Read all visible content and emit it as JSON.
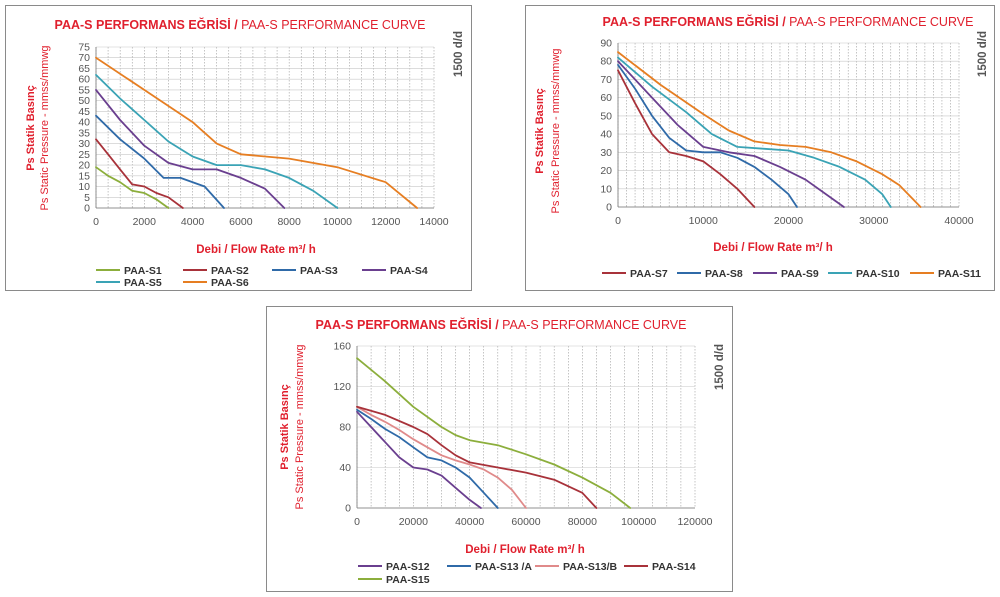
{
  "colors": {
    "title": "#e0202e",
    "grid": "#8a8a8a",
    "text": "#555555"
  },
  "chart_data": [
    {
      "type": "line",
      "title_bold": "PAA-S PERFORMANS EĞRİSİ /",
      "title_light": "PAA-S PERFORMANCE CURVE",
      "ylabel_tr": "Ps Statik Basınç",
      "ylabel_en": "Ps Static Pressure - mmss/mmwg",
      "rpm_label": "1500 d/d",
      "xlabel": "Debi / Flow Rate m³/ h",
      "xlim": [
        0,
        14000
      ],
      "xticks": [
        0,
        2000,
        4000,
        6000,
        8000,
        10000,
        12000,
        14000
      ],
      "xtick_labels": [
        "0",
        "2000",
        "4000",
        "6000",
        "8000",
        "10000",
        "12000",
        "14000"
      ],
      "xgrid_step": 500,
      "ylim": [
        0,
        75
      ],
      "yticks": [
        0,
        5,
        10,
        15,
        20,
        25,
        30,
        35,
        40,
        45,
        50,
        55,
        60,
        65,
        70,
        75
      ],
      "ytick_labels": [
        "0",
        "5",
        "10",
        "15",
        "20",
        "25",
        "30",
        "35",
        "40",
        "45",
        "50",
        "55",
        "60",
        "65",
        "70",
        "75"
      ],
      "legend_rows": [
        [
          "PAA-S1",
          "PAA-S2",
          "PAA-S3",
          "PAA-S4"
        ],
        [
          "PAA-S5",
          "PAA-S6"
        ]
      ],
      "series": [
        {
          "name": "PAA-S1",
          "color": "#8cae3c",
          "x": [
            0,
            500,
            1000,
            1500,
            2000,
            2500,
            3000
          ],
          "y": [
            19,
            15,
            12,
            8,
            7,
            4,
            0
          ]
        },
        {
          "name": "PAA-S2",
          "color": "#a8323a",
          "x": [
            0,
            500,
            1000,
            1500,
            2000,
            2500,
            3000,
            3600
          ],
          "y": [
            32,
            25,
            18,
            11,
            10,
            7,
            5,
            0
          ]
        },
        {
          "name": "PAA-S3",
          "color": "#2f6aa8",
          "x": [
            0,
            1000,
            2000,
            2800,
            3500,
            4500,
            5300
          ],
          "y": [
            43,
            32,
            23,
            14,
            14,
            10,
            0
          ]
        },
        {
          "name": "PAA-S4",
          "color": "#6a3f8f",
          "x": [
            0,
            1000,
            2000,
            3000,
            4000,
            5000,
            6000,
            7000,
            7800
          ],
          "y": [
            55,
            41,
            29,
            21,
            18,
            18,
            14,
            9,
            0
          ]
        },
        {
          "name": "PAA-S5",
          "color": "#3aa3b5",
          "x": [
            0,
            1000,
            2000,
            3000,
            4000,
            5000,
            6000,
            7000,
            8000,
            9000,
            10000
          ],
          "y": [
            62,
            51,
            41,
            31,
            24,
            20,
            20,
            18,
            14,
            8,
            0
          ]
        },
        {
          "name": "PAA-S6",
          "color": "#e67e22",
          "x": [
            0,
            2000,
            4000,
            5000,
            6000,
            8000,
            10000,
            12000,
            13300
          ],
          "y": [
            70,
            55,
            40,
            30,
            25,
            23,
            19,
            12,
            0
          ]
        }
      ]
    },
    {
      "type": "line",
      "title_bold": "PAA-S PERFORMANS EĞRİSİ /",
      "title_light": "PAA-S PERFORMANCE CURVE",
      "ylabel_tr": "Ps Statik Basınç",
      "ylabel_en": "Ps Static Pressure - mmss/mmwg",
      "rpm_label": "1500 d/d",
      "xlabel": "Debi / Flow Rate m³/ h",
      "xlim": [
        0,
        40000
      ],
      "xticks": [
        0,
        10000,
        20000,
        30000,
        40000
      ],
      "xtick_labels": [
        "0",
        "10000",
        "20000",
        "30000",
        "40000"
      ],
      "xgrid_step": 1000,
      "ylim": [
        0,
        90
      ],
      "yticks": [
        0,
        10,
        20,
        30,
        40,
        50,
        60,
        70,
        80,
        90
      ],
      "ytick_labels": [
        "0",
        "10",
        "20",
        "30",
        "40",
        "50",
        "60",
        "70",
        "80",
        "90"
      ],
      "legend_rows": [
        [
          "PAA-S7",
          "PAA-S8",
          "PAA-S9",
          "PAA-S10",
          "PAA-S11"
        ]
      ],
      "series": [
        {
          "name": "PAA-S7",
          "color": "#a8323a",
          "x": [
            0,
            2000,
            4000,
            6000,
            8000,
            10000,
            12000,
            14000,
            16000
          ],
          "y": [
            75,
            57,
            40,
            30,
            28,
            25,
            18,
            10,
            0
          ]
        },
        {
          "name": "PAA-S8",
          "color": "#2f6aa8",
          "x": [
            0,
            2000,
            4000,
            6000,
            8000,
            10000,
            12000,
            14000,
            16000,
            18000,
            20000,
            21000
          ],
          "y": [
            78,
            65,
            50,
            38,
            31,
            30,
            30,
            27,
            22,
            15,
            7,
            0
          ]
        },
        {
          "name": "PAA-S9",
          "color": "#6a3f8f",
          "x": [
            0,
            4000,
            7000,
            10000,
            13000,
            16000,
            19000,
            22000,
            25000,
            26500
          ],
          "y": [
            80,
            60,
            45,
            33,
            30,
            28,
            22,
            15,
            5,
            0
          ]
        },
        {
          "name": "PAA-S10",
          "color": "#3aa3b5",
          "x": [
            0,
            4000,
            8000,
            11000,
            14000,
            17000,
            20000,
            23000,
            26000,
            29000,
            31000,
            32000
          ],
          "y": [
            82,
            66,
            52,
            40,
            33,
            32,
            31,
            27,
            22,
            15,
            7,
            0
          ]
        },
        {
          "name": "PAA-S11",
          "color": "#e67e22",
          "x": [
            0,
            5000,
            10000,
            13000,
            16000,
            19000,
            22000,
            25000,
            28000,
            31000,
            33000,
            35500
          ],
          "y": [
            85,
            67,
            51,
            42,
            36,
            34,
            33,
            30,
            25,
            18,
            12,
            0
          ]
        }
      ]
    },
    {
      "type": "line",
      "title_bold": "PAA-S PERFORMANS EĞRİSİ /",
      "title_light": "PAA-S PERFORMANCE CURVE",
      "ylabel_tr": "Ps Statik Basınç",
      "ylabel_en": "Ps Static Pressure - mmss/mmwg",
      "rpm_label": "1500 d/d",
      "xlabel": "Debi / Flow Rate m³/ h",
      "xlim": [
        0,
        120000
      ],
      "xticks": [
        0,
        20000,
        40000,
        60000,
        80000,
        100000,
        120000
      ],
      "xtick_labels": [
        "0",
        "20000",
        "40000",
        "60000",
        "80000",
        "100000",
        "120000"
      ],
      "xgrid_step": 5000,
      "ylim": [
        0,
        160
      ],
      "yticks": [
        0,
        40,
        80,
        120,
        160
      ],
      "ytick_labels": [
        "0",
        "40",
        "80",
        "120",
        "160"
      ],
      "legend_rows": [
        [
          "PAA-S12",
          "PAA-S13 /A",
          "PAA-S13/B",
          "PAA-S14"
        ],
        [
          "PAA-S15"
        ]
      ],
      "series": [
        {
          "name": "PAA-S12",
          "color": "#6a3f8f",
          "x": [
            0,
            5000,
            10000,
            15000,
            20000,
            25000,
            30000,
            35000,
            40000,
            44000
          ],
          "y": [
            95,
            80,
            65,
            50,
            40,
            38,
            32,
            20,
            8,
            0
          ]
        },
        {
          "name": "PAA-S13 /A",
          "color": "#2f6aa8",
          "x": [
            0,
            5000,
            10000,
            15000,
            20000,
            25000,
            30000,
            35000,
            40000,
            45000,
            50000
          ],
          "y": [
            97,
            88,
            78,
            70,
            60,
            50,
            47,
            40,
            30,
            15,
            0
          ]
        },
        {
          "name": "PAA-S13/B",
          "color": "#e08a8a",
          "x": [
            0,
            5000,
            10000,
            15000,
            20000,
            25000,
            30000,
            35000,
            40000,
            45000,
            50000,
            55000,
            60000
          ],
          "y": [
            100,
            92,
            85,
            77,
            68,
            60,
            52,
            47,
            43,
            38,
            30,
            18,
            0
          ]
        },
        {
          "name": "PAA-S14",
          "color": "#a8323a",
          "x": [
            0,
            10000,
            20000,
            25000,
            30000,
            35000,
            40000,
            50000,
            60000,
            70000,
            80000,
            85000
          ],
          "y": [
            100,
            92,
            80,
            73,
            62,
            52,
            45,
            40,
            35,
            28,
            15,
            0
          ]
        },
        {
          "name": "PAA-S15",
          "color": "#8cae3c",
          "x": [
            0,
            10000,
            20000,
            30000,
            35000,
            40000,
            50000,
            60000,
            70000,
            80000,
            90000,
            97000
          ],
          "y": [
            148,
            125,
            100,
            80,
            72,
            67,
            62,
            53,
            43,
            30,
            15,
            0
          ]
        }
      ]
    }
  ]
}
